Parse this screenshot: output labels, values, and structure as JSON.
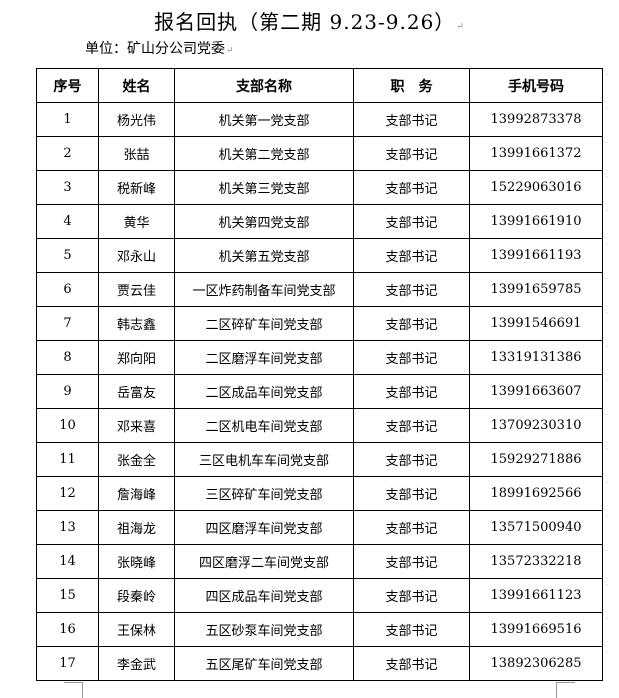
{
  "document": {
    "title": "报名回执（第二期  9.23-9.26）",
    "unit": "单位：矿山分公司党委"
  },
  "table": {
    "headers": [
      "序号",
      "姓名",
      "支部名称",
      "职　务",
      "手机号码"
    ],
    "rows": [
      [
        "1",
        "杨光伟",
        "机关第一党支部",
        "支部书记",
        "13992873378"
      ],
      [
        "2",
        "张喆",
        "机关第二党支部",
        "支部书记",
        "13991661372"
      ],
      [
        "3",
        "税新峰",
        "机关第三党支部",
        "支部书记",
        "15229063016"
      ],
      [
        "4",
        "黄华",
        "机关第四党支部",
        "支部书记",
        "13991661910"
      ],
      [
        "5",
        "邓永山",
        "机关第五党支部",
        "支部书记",
        "13991661193"
      ],
      [
        "6",
        "贾云佳",
        "一区炸药制备车间党支部",
        "支部书记",
        "13991659785"
      ],
      [
        "7",
        "韩志鑫",
        "二区碎矿车间党支部",
        "支部书记",
        "13991546691"
      ],
      [
        "8",
        "郑向阳",
        "二区磨浮车间党支部",
        "支部书记",
        "13319131386"
      ],
      [
        "9",
        "岳富友",
        "二区成品车间党支部",
        "支部书记",
        "13991663607"
      ],
      [
        "10",
        "邓来喜",
        "二区机电车间党支部",
        "支部书记",
        "13709230310"
      ],
      [
        "11",
        "张金全",
        "三区电机车车间党支部",
        "支部书记",
        "15929271886"
      ],
      [
        "12",
        "詹海峰",
        "三区碎矿车间党支部",
        "支部书记",
        "18991692566"
      ],
      [
        "13",
        "祖海龙",
        "四区磨浮车间党支部",
        "支部书记",
        "13571500940"
      ],
      [
        "14",
        "张晓峰",
        "四区磨浮二车间党支部",
        "支部书记",
        "13572332218"
      ],
      [
        "15",
        "段秦岭",
        "四区成品车间党支部",
        "支部书记",
        "13991661123"
      ],
      [
        "16",
        "王保林",
        "五区砂泵车间党支部",
        "支部书记",
        "13991669516"
      ],
      [
        "17",
        "李金武",
        "五区尾矿车间党支部",
        "支部书记",
        "13892306285"
      ]
    ]
  }
}
